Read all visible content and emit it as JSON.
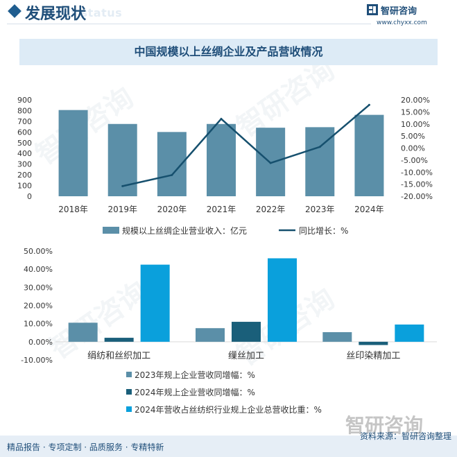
{
  "header": {
    "title": "发展现状",
    "subtitle_ghost": "ment status",
    "brand": "智研咨询",
    "url": "www.chyxx.com"
  },
  "footer": {
    "left_text": "精品报告 · 专项定制 · 品质服务 · 专精特新",
    "source": "资料来源：智研咨询整理",
    "brand_big": "智研咨询"
  },
  "watermark_text": "智研咨询",
  "colors": {
    "bar": "#5b8fa8",
    "line": "#16506e",
    "dark_bar": "#1a5f7a",
    "bright_bar": "#0aa0dc",
    "title": "#1f4e79"
  },
  "chart_data": [
    {
      "type": "bar",
      "title": "中国规模以上丝绸企业及产品营收情况",
      "categories": [
        "2018年",
        "2019年",
        "2020年",
        "2021年",
        "2022年",
        "2023年",
        "2024年"
      ],
      "series": [
        {
          "name": "规模以上丝绸企业营业收入：亿元",
          "type": "bar",
          "axis": "left",
          "values": [
            805,
            675,
            600,
            675,
            640,
            645,
            760
          ]
        },
        {
          "name": "同比增长：%",
          "type": "line",
          "axis": "right",
          "values": [
            null,
            -15.8,
            -11.2,
            12.1,
            -6.2,
            0.5,
            17.9
          ]
        }
      ],
      "left_axis": {
        "ticks": [
          "0",
          "100",
          "200",
          "300",
          "400",
          "500",
          "600",
          "700",
          "800",
          "900"
        ],
        "ylim": [
          0,
          900
        ]
      },
      "right_axis": {
        "ticks": [
          "-20.00%",
          "-15.00%",
          "-10.00%",
          "-5.00%",
          "0.00%",
          "5.00%",
          "10.00%",
          "15.00%",
          "20.00%"
        ],
        "ylim": [
          -20,
          20
        ]
      },
      "legend_position": "bottom"
    },
    {
      "type": "bar",
      "categories": [
        "绢纺和丝织加工",
        "缫丝加工",
        "丝印染精加工"
      ],
      "series": [
        {
          "name": "2023年规上企业营收同增幅：%",
          "values": [
            10.5,
            7.5,
            5.3
          ]
        },
        {
          "name": "2024年规上企业营收同增幅：%",
          "values": [
            2.2,
            11.0,
            -1.8
          ]
        },
        {
          "name": "2024年营收占丝纺织行业规上企业总营收比重：%",
          "values": [
            42.5,
            46.0,
            9.5
          ]
        }
      ],
      "y_axis": {
        "ticks": [
          "-10.00%",
          "0.00%",
          "10.00%",
          "20.00%",
          "30.00%",
          "40.00%",
          "50.00%"
        ],
        "ylim": [
          -10,
          50
        ]
      },
      "legend_position": "bottom"
    }
  ]
}
